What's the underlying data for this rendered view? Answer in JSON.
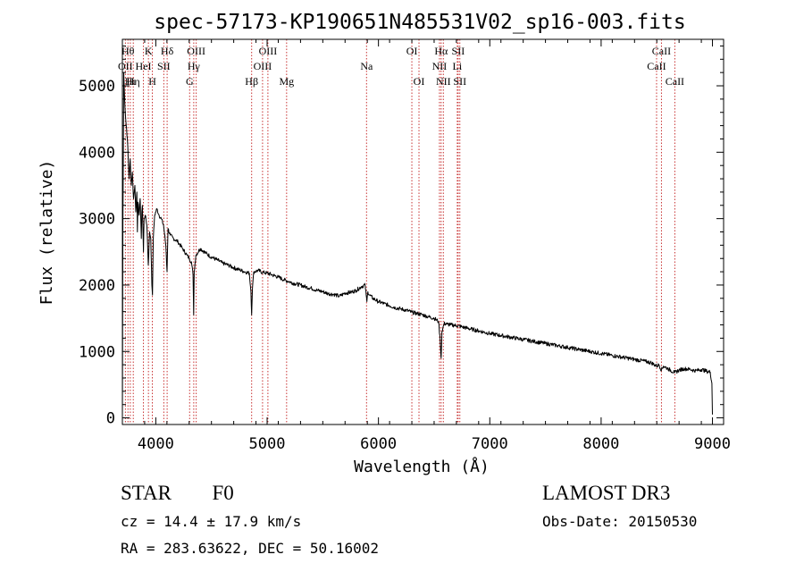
{
  "chart_data": {
    "type": "line",
    "title": "spec-57173-KP190651N485531V02_sp16-003.fits",
    "xlabel": "Wavelength (Å)",
    "ylabel": "Flux (relative)",
    "xlim": [
      3700,
      9100
    ],
    "ylim": [
      -100,
      5700
    ],
    "xticks": [
      4000,
      5000,
      6000,
      7000,
      8000,
      9000
    ],
    "yticks": [
      0,
      1000,
      2000,
      3000,
      4000,
      5000
    ],
    "series": [
      {
        "name": "spectrum",
        "x": [
          3700,
          3705,
          3712,
          3720,
          3730,
          3745,
          3760,
          3770,
          3780,
          3790,
          3800,
          3812,
          3820,
          3830,
          3835,
          3840,
          3850,
          3860,
          3870,
          3875,
          3880,
          3889,
          3895,
          3905,
          3920,
          3933,
          3945,
          3955,
          3965,
          3970,
          3978,
          3990,
          4010,
          4030,
          4050,
          4070,
          4090,
          4101,
          4110,
          4130,
          4160,
          4200,
          4240,
          4280,
          4300,
          4320,
          4335,
          4340,
          4345,
          4360,
          4400,
          4450,
          4500,
          4550,
          4600,
          4650,
          4700,
          4750,
          4800,
          4840,
          4855,
          4861,
          4868,
          4880,
          4920,
          4960,
          5000,
          5050,
          5100,
          5150,
          5200,
          5250,
          5300,
          5350,
          5400,
          5450,
          5500,
          5550,
          5600,
          5650,
          5700,
          5750,
          5800,
          5850,
          5880,
          5890,
          5896,
          5905,
          5920,
          5950,
          6000,
          6050,
          6100,
          6150,
          6200,
          6250,
          6300,
          6350,
          6400,
          6450,
          6500,
          6540,
          6555,
          6563,
          6570,
          6590,
          6620,
          6650,
          6700,
          6750,
          6800,
          6850,
          6900,
          6950,
          7000,
          7100,
          7200,
          7300,
          7400,
          7500,
          7600,
          7700,
          7800,
          7900,
          8000,
          8100,
          8200,
          8300,
          8400,
          8450,
          8498,
          8520,
          8542,
          8560,
          8600,
          8662,
          8700,
          8750,
          8800,
          8850,
          8900,
          8950,
          8980,
          8995,
          9000
        ],
        "y": [
          0,
          3000,
          5200,
          4800,
          4500,
          4200,
          3600,
          3900,
          3500,
          3700,
          3300,
          3500,
          3100,
          3400,
          2800,
          3250,
          3050,
          3300,
          2700,
          3100,
          3200,
          2500,
          3000,
          3050,
          2900,
          2300,
          2800,
          2700,
          2000,
          1850,
          2700,
          3050,
          3150,
          3050,
          3000,
          2900,
          2600,
          2200,
          2850,
          2750,
          2700,
          2650,
          2550,
          2450,
          2400,
          2350,
          2150,
          1550,
          2200,
          2450,
          2550,
          2480,
          2420,
          2380,
          2330,
          2300,
          2260,
          2230,
          2200,
          2180,
          1900,
          1550,
          1950,
          2200,
          2220,
          2190,
          2180,
          2150,
          2120,
          2080,
          2050,
          2020,
          2000,
          1970,
          1950,
          1920,
          1900,
          1870,
          1860,
          1830,
          1880,
          1890,
          1920,
          1980,
          2000,
          1850,
          1750,
          1900,
          1850,
          1800,
          1750,
          1720,
          1690,
          1660,
          1640,
          1620,
          1590,
          1570,
          1550,
          1520,
          1500,
          1450,
          1150,
          900,
          1300,
          1420,
          1410,
          1400,
          1390,
          1370,
          1350,
          1330,
          1310,
          1290,
          1270,
          1240,
          1210,
          1180,
          1150,
          1120,
          1090,
          1060,
          1030,
          1000,
          970,
          940,
          910,
          880,
          850,
          830,
          780,
          800,
          720,
          780,
          740,
          680,
          720,
          740,
          730,
          710,
          730,
          700,
          690,
          520,
          50
        ]
      }
    ],
    "lines": [
      {
        "wl": 3727,
        "label": "OII",
        "row": 2
      },
      {
        "wl": 3750,
        "label": "Hθ",
        "row": 1
      },
      {
        "wl": 3771,
        "label": "Hι",
        "row": 3
      },
      {
        "wl": 3798,
        "label": "Hη",
        "row": 3
      },
      {
        "wl": 3889,
        "label": "HeI",
        "row": 2
      },
      {
        "wl": 3934,
        "label": "K",
        "row": 1
      },
      {
        "wl": 3969,
        "label": "H",
        "row": 3
      },
      {
        "wl": 4072,
        "label": "SII",
        "row": 2
      },
      {
        "wl": 4102,
        "label": "Hδ",
        "row": 1
      },
      {
        "wl": 4304,
        "label": "G",
        "row": 3
      },
      {
        "wl": 4341,
        "label": "Hγ",
        "row": 2
      },
      {
        "wl": 4363,
        "label": "OIII",
        "row": 1
      },
      {
        "wl": 4861,
        "label": "Hβ",
        "row": 3
      },
      {
        "wl": 4959,
        "label": "OIII",
        "row": 2
      },
      {
        "wl": 5007,
        "label": "OIII",
        "row": 1
      },
      {
        "wl": 5175,
        "label": "Mg",
        "row": 3
      },
      {
        "wl": 5893,
        "label": "Na",
        "row": 2
      },
      {
        "wl": 6300,
        "label": "OI",
        "row": 1
      },
      {
        "wl": 6364,
        "label": "OI",
        "row": 3
      },
      {
        "wl": 6548,
        "label": "NII",
        "row": 2
      },
      {
        "wl": 6563,
        "label": "Hα",
        "row": 1
      },
      {
        "wl": 6583,
        "label": "NII",
        "row": 3
      },
      {
        "wl": 6708,
        "label": "Li",
        "row": 2
      },
      {
        "wl": 6716,
        "label": "SII",
        "row": 1
      },
      {
        "wl": 6731,
        "label": "SII",
        "row": 3
      },
      {
        "wl": 8498,
        "label": "CaII",
        "row": 2
      },
      {
        "wl": 8542,
        "label": "CaII",
        "row": 1
      },
      {
        "wl": 8662,
        "label": "CaII",
        "row": 3
      }
    ]
  },
  "info": {
    "class_label": "STAR",
    "subclass": "F0",
    "survey": "LAMOST DR3",
    "cz": "cz = 14.4 ± 17.9 km/s",
    "obs_date": "Obs-Date: 20150530",
    "radec": "RA = 283.63622, DEC =  50.16002"
  }
}
